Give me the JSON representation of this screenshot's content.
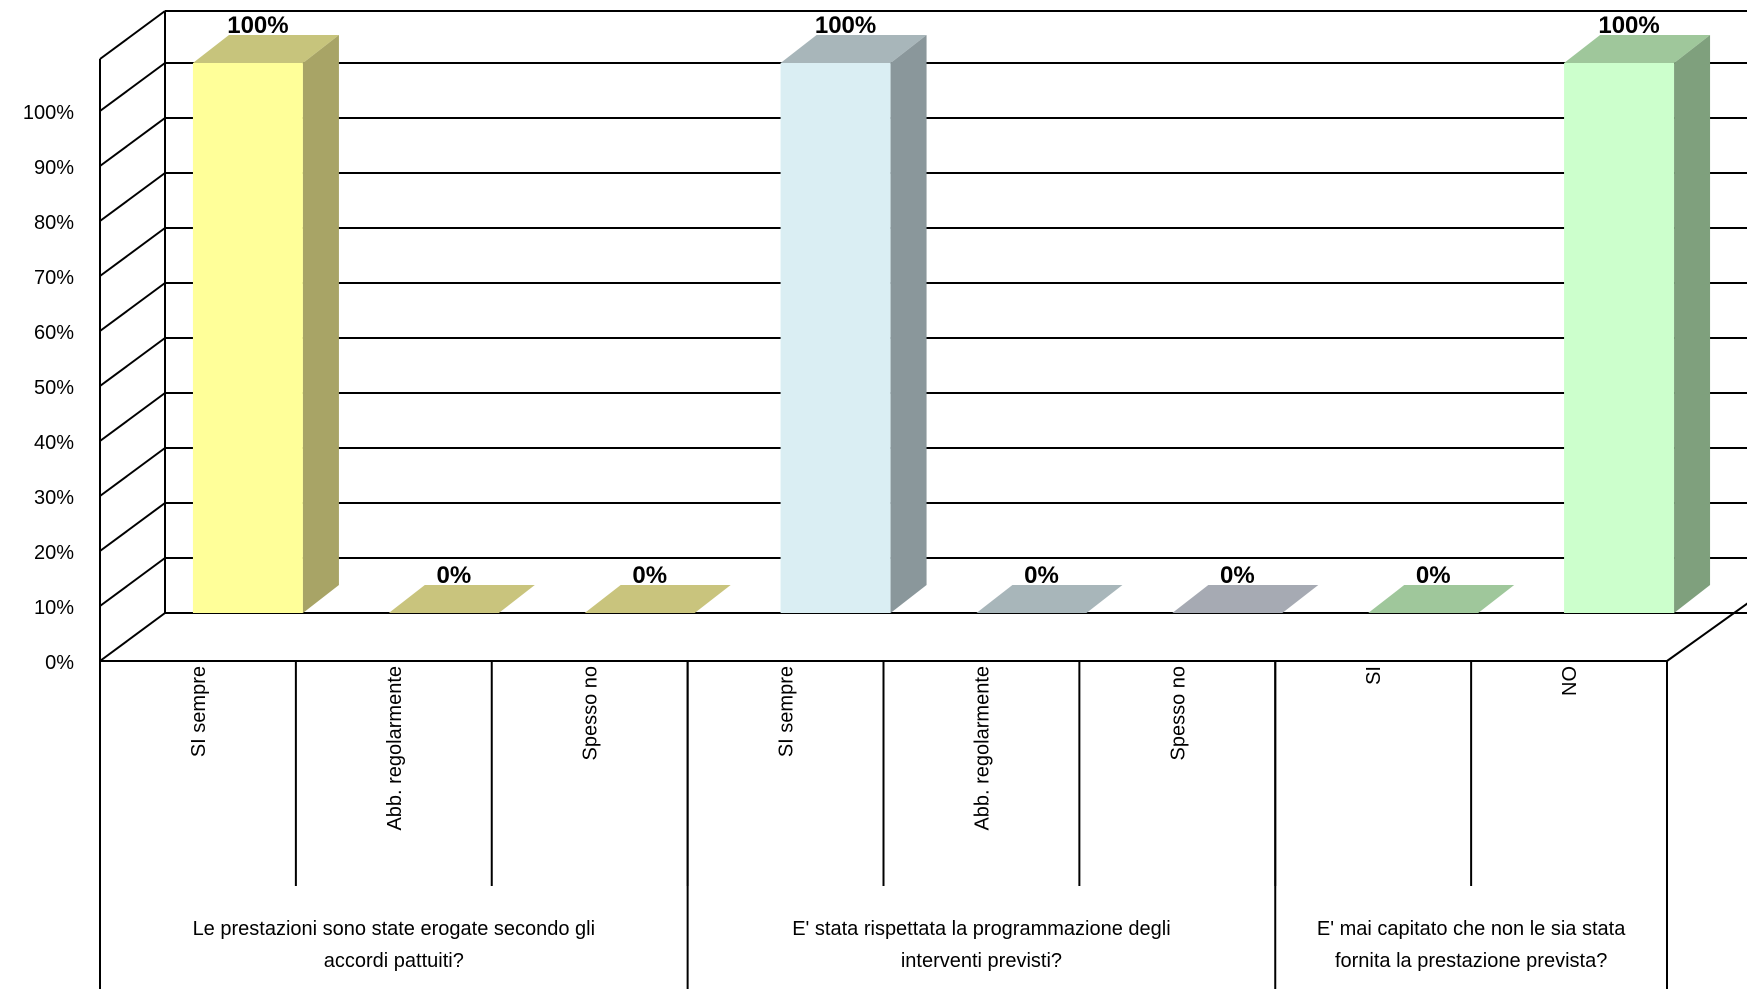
{
  "chart_data": {
    "type": "bar",
    "title": "",
    "xlabel": "",
    "ylabel": "",
    "ylim": [
      0,
      100
    ],
    "y_ticks": [
      "0%",
      "10%",
      "20%",
      "30%",
      "40%",
      "50%",
      "60%",
      "70%",
      "80%",
      "90%",
      "100%"
    ],
    "grid": true,
    "legend": "none",
    "three_d": true,
    "groups": [
      {
        "label_lines": [
          "Le prestazioni sono state  erogate secondo gli",
          "accordi pattuiti?"
        ],
        "categories": [
          "SI sempre",
          "Abb.  regolarmente",
          "Spesso no"
        ],
        "values": [
          100,
          0,
          0
        ],
        "labels": [
          "100%",
          "0%",
          "0%"
        ],
        "colors": [
          {
            "front": "#ffff99",
            "side": "#a8a466",
            "top": "#c7c47c"
          },
          {
            "front": "#c9c47d",
            "side": "#a8a466",
            "top": "#c7c47c"
          },
          {
            "front": "#c9c47d",
            "side": "#a8a466",
            "top": "#c7c47c"
          }
        ]
      },
      {
        "label_lines": [
          "E' stata rispettata la programmazione degli",
          "interventi previsti?"
        ],
        "categories": [
          "SI sempre",
          "Abb. regolarmente",
          "Spesso no"
        ],
        "values": [
          100,
          0,
          0
        ],
        "labels": [
          "100%",
          "0%",
          "0%"
        ],
        "colors": [
          {
            "front": "#daeef3",
            "side": "#8a979b",
            "top": "#a8b6ba"
          },
          {
            "front": "#a8b6ba",
            "side": "#8a979b",
            "top": "#a8b6ba"
          },
          {
            "front": "#a6aab3",
            "side": "#8a979b",
            "top": "#a6aab3"
          }
        ]
      },
      {
        "label_lines": [
          "E' mai capitato che non le sia stata",
          "fornita la prestazione prevista?"
        ],
        "categories": [
          "SI",
          "NO"
        ],
        "values": [
          0,
          100
        ],
        "labels": [
          "0%",
          "100%"
        ],
        "colors": [
          {
            "front": "#9fc79b",
            "side": "#7fa07d",
            "top": "#9fc79b"
          },
          {
            "front": "#ccffcc",
            "side": "#7fa07d",
            "top": "#9fc79b"
          }
        ]
      }
    ]
  }
}
